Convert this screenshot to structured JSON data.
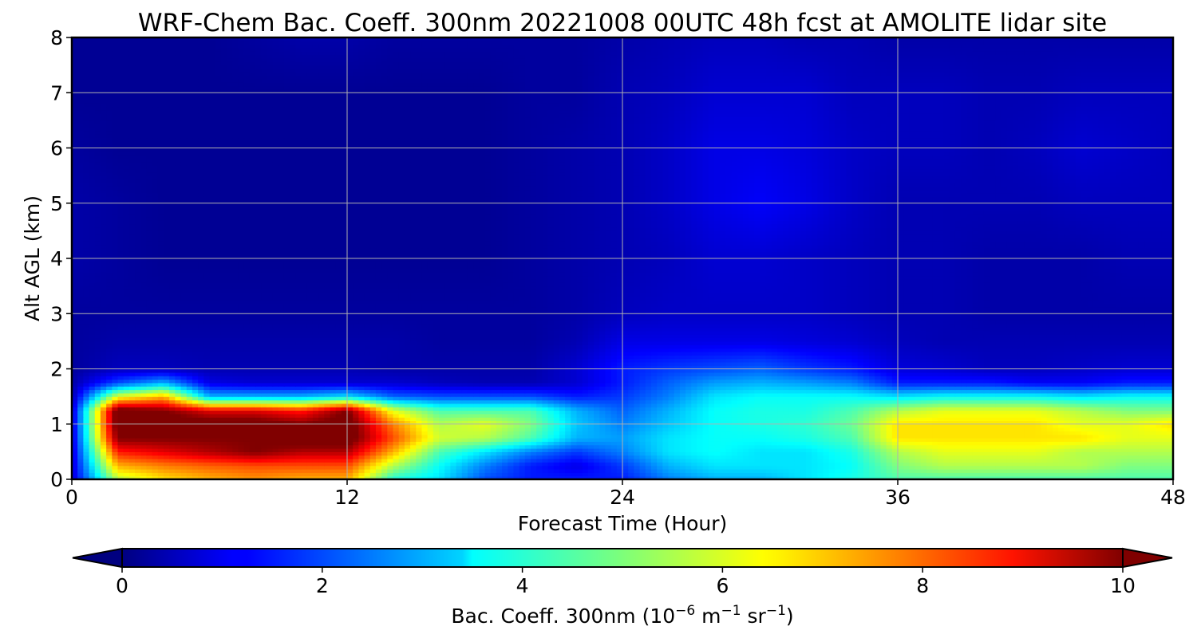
{
  "chart_data": {
    "type": "heatmap",
    "title": "WRF-Chem Bac. Coeff. 300nm  20221008 00UTC 48h fcst at AMOLITE lidar site",
    "xlabel": "Forecast Time (Hour)",
    "ylabel": "Alt AGL (km)",
    "xlim": [
      0,
      48
    ],
    "ylim": [
      0,
      8
    ],
    "xticks": [
      0,
      12,
      24,
      36,
      48
    ],
    "yticks": [
      0,
      1,
      2,
      3,
      4,
      5,
      6,
      7,
      8
    ],
    "grid": true,
    "colormap": "jet",
    "colorbar": {
      "label": "Bac. Coeff. 300nm  (10",
      "label_exp1": "−6",
      "label_mid": " m",
      "label_exp2": "−1",
      "label_mid2": " sr",
      "label_exp3": "−1",
      "label_end": ")",
      "range": [
        0,
        10
      ],
      "ticks": [
        0,
        2,
        4,
        6,
        8,
        10
      ],
      "extend": "both",
      "orientation": "horizontal"
    },
    "x": [
      0,
      2,
      4,
      6,
      8,
      10,
      12,
      14,
      16,
      18,
      20,
      22,
      24,
      26,
      28,
      30,
      32,
      34,
      36,
      38,
      40,
      42,
      44,
      46,
      48
    ],
    "y": [
      0,
      0.25,
      0.5,
      0.75,
      1.0,
      1.25,
      1.5,
      1.75,
      2.0,
      2.5,
      3,
      4,
      5,
      6,
      7,
      8
    ],
    "z": [
      [
        0.8,
        5.5,
        6.5,
        7.0,
        7.3,
        7.0,
        7.0,
        4.0,
        3.5,
        2.0,
        1.5,
        1.5,
        1.5,
        2.5,
        3.0,
        3.0,
        3.5,
        4.0,
        4.5,
        4.5,
        4.5,
        4.5,
        4.5,
        4.5,
        4.5
      ],
      [
        0.8,
        7.0,
        7.5,
        7.8,
        8.0,
        8.0,
        8.0,
        5.5,
        3.8,
        2.5,
        1.5,
        1.0,
        1.8,
        3.0,
        3.5,
        3.5,
        3.5,
        3.8,
        5.0,
        5.5,
        5.5,
        5.5,
        5.5,
        5.0,
        5.0
      ],
      [
        0.8,
        8.5,
        9.0,
        9.5,
        10.0,
        9.5,
        9.5,
        7.0,
        4.5,
        3.5,
        2.5,
        1.8,
        2.5,
        3.5,
        3.8,
        3.5,
        3.5,
        4.0,
        5.5,
        6.0,
        6.0,
        6.0,
        5.5,
        5.5,
        5.5
      ],
      [
        0.8,
        10.0,
        10.0,
        10.0,
        10.0,
        10.5,
        10.5,
        8.0,
        5.8,
        5.5,
        4.5,
        3.0,
        2.8,
        3.5,
        3.8,
        3.8,
        4.0,
        4.5,
        6.5,
        6.5,
        6.5,
        6.5,
        6.5,
        6.0,
        6.0
      ],
      [
        0.8,
        10.5,
        10.5,
        10.5,
        10.5,
        10.0,
        10.5,
        7.5,
        5.5,
        6.0,
        5.0,
        3.2,
        2.5,
        3.2,
        3.8,
        4.0,
        4.2,
        4.8,
        6.5,
        6.5,
        6.5,
        6.5,
        6.0,
        6.0,
        6.5
      ],
      [
        0.8,
        10.5,
        10.0,
        9.0,
        9.0,
        8.5,
        10.0,
        6.0,
        4.5,
        4.5,
        4.5,
        3.0,
        2.2,
        3.0,
        3.8,
        4.0,
        4.0,
        4.5,
        5.5,
        6.0,
        6.0,
        6.0,
        5.5,
        5.0,
        5.0
      ],
      [
        0.5,
        6.0,
        7.0,
        3.0,
        3.0,
        3.0,
        3.5,
        2.2,
        2.0,
        2.0,
        2.0,
        1.5,
        1.8,
        2.5,
        3.5,
        3.8,
        3.8,
        3.8,
        3.5,
        3.8,
        3.8,
        3.8,
        3.5,
        3.8,
        3.8
      ],
      [
        0.4,
        2.0,
        3.0,
        1.0,
        0.8,
        0.8,
        0.8,
        0.8,
        0.6,
        0.5,
        0.5,
        0.8,
        1.5,
        2.2,
        2.8,
        3.0,
        2.8,
        2.5,
        1.5,
        1.5,
        1.5,
        1.2,
        1.2,
        1.5,
        1.5
      ],
      [
        0.3,
        0.6,
        0.6,
        0.5,
        0.5,
        0.5,
        0.5,
        0.4,
        0.4,
        0.4,
        0.4,
        0.8,
        1.5,
        1.8,
        2.0,
        2.2,
        1.8,
        1.5,
        0.9,
        0.8,
        0.6,
        0.6,
        0.7,
        0.8,
        0.8
      ],
      [
        0.3,
        0.4,
        0.4,
        0.4,
        0.4,
        0.4,
        0.4,
        0.4,
        0.3,
        0.3,
        0.3,
        0.5,
        1.0,
        1.0,
        1.0,
        1.0,
        0.9,
        0.8,
        0.6,
        0.5,
        0.5,
        0.5,
        0.5,
        0.5,
        0.5
      ],
      [
        0.3,
        0.3,
        0.3,
        0.3,
        0.3,
        0.3,
        0.3,
        0.3,
        0.3,
        0.3,
        0.3,
        0.4,
        0.6,
        0.7,
        0.7,
        0.7,
        0.7,
        0.6,
        0.5,
        0.5,
        0.4,
        0.4,
        0.4,
        0.4,
        0.4
      ],
      [
        0.4,
        0.3,
        0.2,
        0.2,
        0.2,
        0.2,
        0.2,
        0.2,
        0.2,
        0.2,
        0.3,
        0.4,
        0.5,
        0.6,
        0.8,
        0.8,
        0.7,
        0.6,
        0.5,
        0.5,
        0.4,
        0.4,
        0.4,
        0.5,
        0.5
      ],
      [
        0.4,
        0.3,
        0.2,
        0.2,
        0.2,
        0.2,
        0.2,
        0.2,
        0.2,
        0.2,
        0.3,
        0.4,
        0.5,
        0.7,
        1.0,
        1.2,
        1.0,
        0.7,
        0.5,
        0.5,
        0.5,
        0.5,
        0.6,
        0.6,
        0.6
      ],
      [
        0.3,
        0.2,
        0.2,
        0.2,
        0.2,
        0.2,
        0.2,
        0.2,
        0.2,
        0.2,
        0.3,
        0.4,
        0.5,
        0.7,
        1.0,
        1.0,
        0.9,
        0.7,
        0.6,
        0.6,
        0.5,
        0.6,
        0.8,
        0.7,
        0.6
      ],
      [
        0.2,
        0.2,
        0.2,
        0.2,
        0.2,
        0.2,
        0.2,
        0.2,
        0.2,
        0.2,
        0.3,
        0.3,
        0.5,
        0.6,
        0.8,
        0.8,
        0.8,
        0.6,
        0.6,
        0.6,
        0.5,
        0.5,
        0.6,
        0.6,
        0.6
      ],
      [
        0.2,
        0.2,
        0.2,
        0.2,
        0.3,
        0.4,
        0.4,
        0.3,
        0.3,
        0.3,
        0.3,
        0.3,
        0.4,
        0.5,
        0.6,
        0.6,
        0.5,
        0.5,
        0.4,
        0.4,
        0.4,
        0.4,
        0.4,
        0.4,
        0.4
      ]
    ]
  }
}
